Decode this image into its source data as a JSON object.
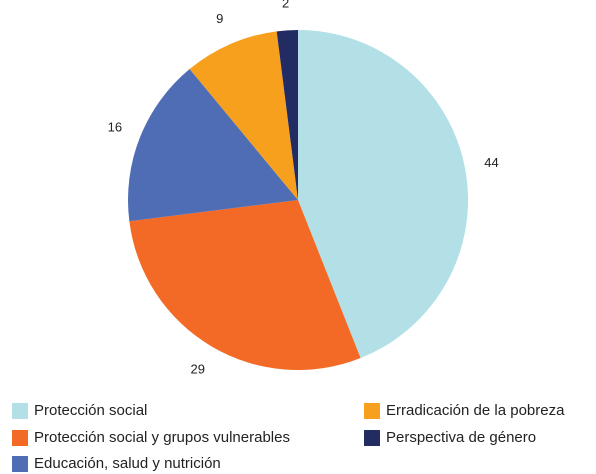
{
  "chart_data": {
    "type": "pie",
    "title": "",
    "categories": [
      "Protección social",
      "Protección social y grupos vulnerables",
      "Educación, salud y nutrición",
      "Erradicación de la pobreza",
      "Perspectiva de género"
    ],
    "values": [
      44,
      29,
      16,
      9,
      2
    ],
    "colors": [
      "#B2E0E6",
      "#F26A25",
      "#4F6DB5",
      "#F7A01E",
      "#232B63"
    ],
    "start_angle": "top, clockwise",
    "data_labels": [
      "44",
      "29",
      "16",
      "9",
      "2"
    ],
    "legend_position": "bottom"
  }
}
